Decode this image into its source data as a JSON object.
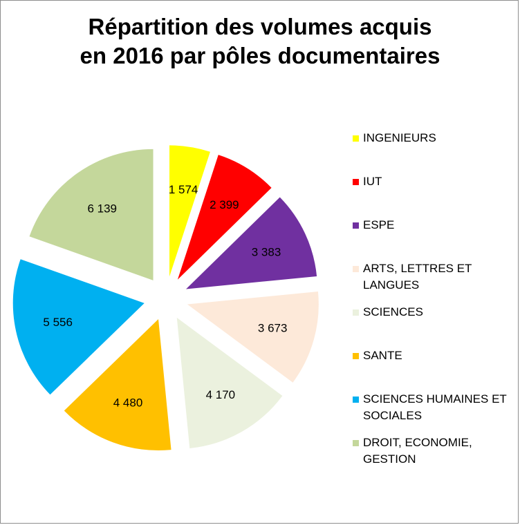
{
  "chart_data": {
    "type": "pie",
    "title_lines": [
      "Répartition des volumes acquis",
      "en 2016 par pôles documentaires"
    ],
    "categories": [
      "INGENIEURS",
      "IUT",
      "ESPE",
      "ARTS, LETTRES ET LANGUES",
      "SCIENCES",
      "SANTE",
      "SCIENCES HUMAINES ET SOCIALES",
      "DROIT, ECONOMIE, GESTION"
    ],
    "legend_lines": [
      [
        "INGENIEURS"
      ],
      [
        "IUT"
      ],
      [
        "ESPE"
      ],
      [
        "ARTS, LETTRES ET",
        "LANGUES"
      ],
      [
        "SCIENCES"
      ],
      [
        "SANTE"
      ],
      [
        "SCIENCES HUMAINES ET",
        "SOCIALES"
      ],
      [
        "DROIT, ECONOMIE,",
        "GESTION"
      ]
    ],
    "values": [
      1574,
      2399,
      3383,
      3673,
      4170,
      4480,
      5556,
      6139
    ],
    "data_labels": [
      "1 574",
      "2 399",
      "3 383",
      "3 673",
      "4 170",
      "4 480",
      "5 556",
      "6 139"
    ],
    "colors": [
      "#ffff00",
      "#ff0000",
      "#7030a0",
      "#fde9d9",
      "#ebf1de",
      "#ffc000",
      "#00b0f0",
      "#c4d79b"
    ],
    "exploded": true,
    "legend_position": "right"
  }
}
